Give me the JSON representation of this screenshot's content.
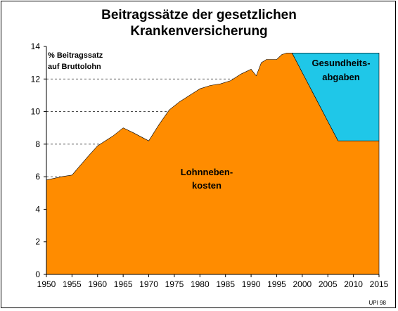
{
  "chart_data": {
    "type": "area",
    "title_lines": [
      "Beitragssätze der gesetzlichen",
      "Krankenversicherung"
    ],
    "ylabel_lines": [
      "% Beitragssatz",
      "auf Bruttolohn"
    ],
    "xlabel": "",
    "xlim": [
      1950,
      2015
    ],
    "ylim": [
      0,
      14
    ],
    "x_ticks": [
      1950,
      1955,
      1960,
      1965,
      1970,
      1975,
      1980,
      1985,
      1990,
      1995,
      2000,
      2005,
      2010,
      2015
    ],
    "y_ticks": [
      0,
      2,
      4,
      6,
      8,
      10,
      12,
      14
    ],
    "grid": "horizontal dashed",
    "series": [
      {
        "label_lines": [
          "Lohnneben-",
          "kosten"
        ],
        "color": "#ff8c00",
        "x": [
          1950,
          1953,
          1955,
          1958,
          1960,
          1963,
          1965,
          1967,
          1970,
          1972,
          1974,
          1976,
          1978,
          1980,
          1982,
          1984,
          1986,
          1988,
          1990,
          1991,
          1992,
          1993,
          1994,
          1995,
          1996,
          1997,
          1998,
          1999,
          2000,
          2001,
          2002,
          2003,
          2004,
          2005,
          2006,
          2007,
          2008,
          2009,
          2010,
          2011,
          2012,
          2013,
          2014,
          2015
        ],
        "values": [
          5.8,
          6.0,
          6.1,
          7.2,
          7.9,
          8.5,
          9.0,
          8.7,
          8.2,
          9.2,
          10.1,
          10.6,
          11.0,
          11.4,
          11.6,
          11.7,
          11.9,
          12.3,
          12.6,
          12.2,
          13.0,
          13.2,
          13.2,
          13.2,
          13.5,
          13.6,
          13.6,
          13.0,
          12.4,
          11.8,
          11.2,
          10.6,
          10.0,
          9.4,
          8.8,
          8.2,
          8.2,
          8.2,
          8.2,
          8.2,
          8.2,
          8.2,
          8.2,
          8.2
        ]
      },
      {
        "label_lines": [
          "Gesundheits-",
          "abgaben"
        ],
        "color": "#1fc7e8",
        "x": [
          1998,
          1999,
          2000,
          2001,
          2002,
          2003,
          2004,
          2005,
          2006,
          2007,
          2008,
          2009,
          2010,
          2011,
          2012,
          2013,
          2014,
          2015
        ],
        "values": [
          13.6,
          13.6,
          13.6,
          13.6,
          13.6,
          13.6,
          13.6,
          13.6,
          13.6,
          13.6,
          13.6,
          13.6,
          13.6,
          13.6,
          13.6,
          13.6,
          13.6,
          13.6
        ]
      }
    ],
    "source_note": "UPI 98"
  }
}
